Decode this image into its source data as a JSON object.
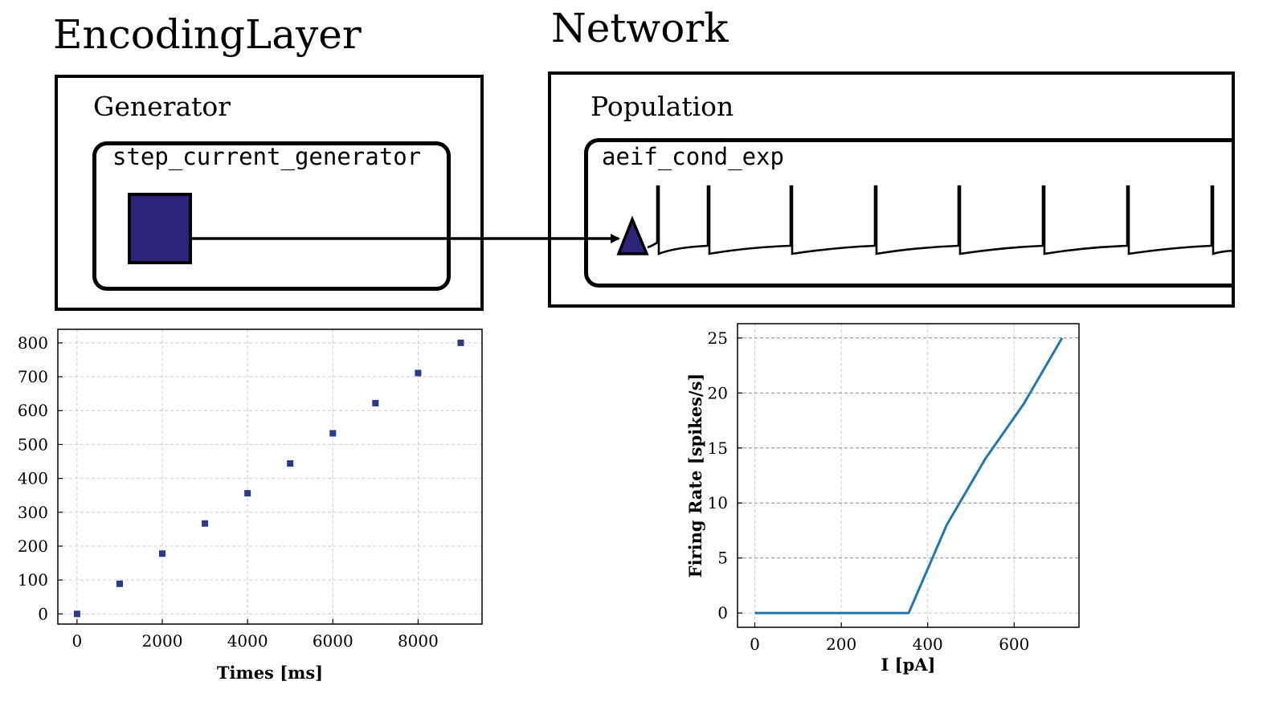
{
  "diagram": {
    "encoding_layer_title": "EncodingLayer",
    "network_title": "Network",
    "generator_label": "Generator",
    "population_label": "Population",
    "generator_model": "step_current_generator",
    "neuron_model": "aeif_cond_exp",
    "square_color": "#2d237a",
    "triangle_color": "#2d237a"
  },
  "chart_data": [
    {
      "type": "scatter",
      "title": "",
      "xlabel": "Times [ms]",
      "ylabel": "",
      "xlim": [
        -450,
        9500
      ],
      "ylim": [
        -30,
        840
      ],
      "xticks": [
        "0",
        "2000",
        "4000",
        "6000",
        "8000"
      ],
      "yticks": [
        "0",
        "100",
        "200",
        "300",
        "400",
        "500",
        "600",
        "700",
        "800"
      ],
      "grid": true,
      "marker_color": "#2d3a8c",
      "x": [
        0,
        1000,
        2000,
        3000,
        4000,
        5000,
        6000,
        7000,
        8000,
        9000
      ],
      "y": [
        0,
        89,
        178,
        267,
        356,
        444,
        533,
        622,
        711,
        800
      ]
    },
    {
      "type": "line",
      "title": "",
      "xlabel": "I [pA]",
      "ylabel": "Firing Rate [spikes/s]",
      "xlim": [
        -40,
        750
      ],
      "ylim": [
        -1.3,
        26.3
      ],
      "xticks": [
        "0",
        "200",
        "400",
        "600"
      ],
      "yticks": [
        "0",
        "5",
        "10",
        "15",
        "20",
        "25"
      ],
      "grid": true,
      "line_color": "#1f77b4",
      "x": [
        0,
        89,
        178,
        267,
        356,
        444,
        533,
        622,
        711
      ],
      "y": [
        0,
        0,
        0,
        0,
        0,
        8,
        14,
        19,
        25
      ]
    }
  ]
}
